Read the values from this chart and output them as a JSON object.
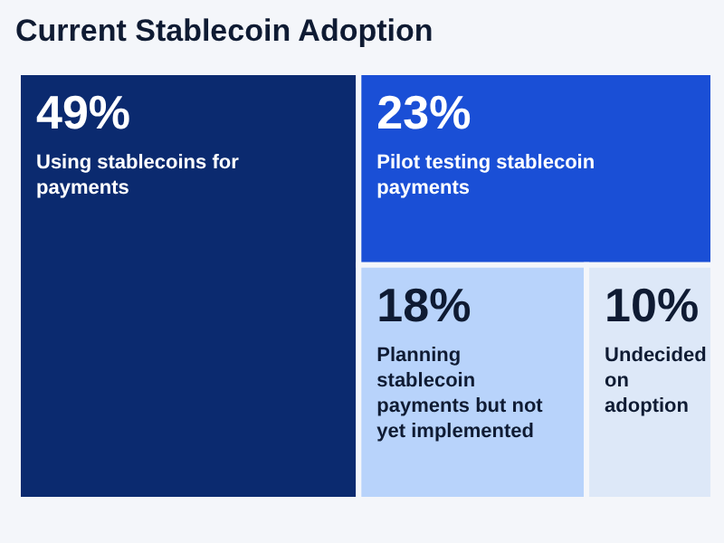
{
  "chart_data": {
    "type": "other",
    "title": "Current Stablecoin Adoption",
    "categories": [
      "Using stablecoins for payments",
      "Pilot testing stablecoin payments",
      "Planning stablecoin payments but not yet implemented",
      "Undecided on adoption"
    ],
    "values": [
      49,
      23,
      18,
      10
    ],
    "colors": [
      "#0b2a6f",
      "#1a4fd6",
      "#b8d3fb",
      "#dde8f8"
    ],
    "value_labels": [
      "49%",
      "23%",
      "18%",
      "10%"
    ]
  }
}
